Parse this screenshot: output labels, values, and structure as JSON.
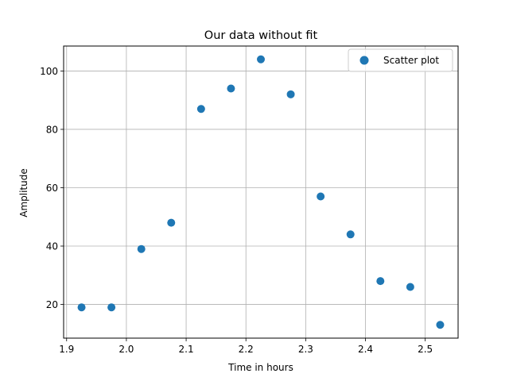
{
  "chart_data": {
    "type": "scatter",
    "title": "Our data without fit",
    "xlabel": "Time in hours",
    "ylabel": "Amplitude",
    "xlim": [
      1.895,
      2.555
    ],
    "ylim": [
      8.45,
      108.55
    ],
    "x_ticks": [
      1.9,
      2.0,
      2.1,
      2.2,
      2.3,
      2.4,
      2.5
    ],
    "x_tick_labels": [
      "1.9",
      "2.0",
      "2.1",
      "2.2",
      "2.3",
      "2.4",
      "2.5"
    ],
    "y_ticks": [
      20,
      40,
      60,
      80,
      100
    ],
    "y_tick_labels": [
      "20",
      "40",
      "60",
      "80",
      "100"
    ],
    "grid": true,
    "legend_position": "upper-right",
    "series": [
      {
        "name": "Scatter plot",
        "color": "#1f77b4",
        "x": [
          1.925,
          1.975,
          2.025,
          2.075,
          2.125,
          2.175,
          2.225,
          2.275,
          2.325,
          2.375,
          2.425,
          2.475,
          2.525
        ],
        "y": [
          19,
          19,
          39,
          48,
          87,
          94,
          104,
          92,
          57,
          44,
          28,
          26,
          13
        ]
      }
    ]
  }
}
